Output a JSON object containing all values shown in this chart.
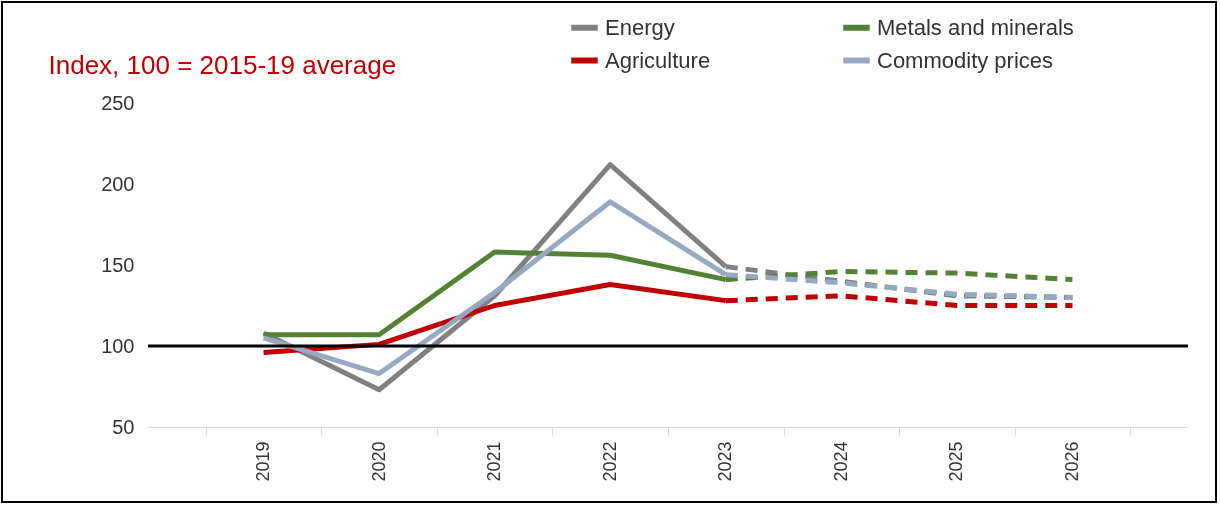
{
  "chart_data": {
    "type": "line",
    "ylabel": "Index, 100 = 2015-19 average",
    "categories": [
      "2019",
      "2020",
      "2021",
      "2022",
      "2023",
      "2024",
      "2025",
      "2026"
    ],
    "ylim": [
      50,
      250
    ],
    "yticks": [
      50,
      100,
      150,
      200,
      250
    ],
    "legend": "top",
    "series": [
      {
        "name": "Energy",
        "color": "#808080",
        "values": [
          108,
          73,
          131,
          212,
          149,
          null,
          null,
          null
        ]
      },
      {
        "name": "Metals and minerals",
        "color": "#548235",
        "values": [
          107,
          107,
          158,
          156,
          141,
          null,
          null,
          null
        ]
      },
      {
        "name": "Agriculture",
        "color": "#c00000",
        "values": [
          96,
          101,
          125,
          138,
          128,
          null,
          null,
          null
        ]
      },
      {
        "name": "Commodity prices",
        "color": "#97a9c1",
        "values": [
          105,
          83,
          133,
          189,
          144,
          null,
          null,
          null
        ]
      },
      {
        "color": "#808080",
        "line_style": "dashed",
        "values": [
          null,
          null,
          null,
          null,
          149,
          140,
          131,
          130
        ]
      },
      {
        "color": "#548235",
        "line_style": "dashed",
        "values": [
          null,
          null,
          null,
          null,
          141,
          146,
          145,
          141
        ]
      },
      {
        "color": "#c00000",
        "line_style": "dashed",
        "values": [
          null,
          null,
          null,
          null,
          128,
          131,
          125,
          125
        ]
      },
      {
        "color": "#97a9c1",
        "line_style": "dashed",
        "values": [
          null,
          null,
          null,
          null,
          144,
          139,
          132,
          130
        ]
      }
    ],
    "ref_lines": [
      {
        "axis": "y",
        "value": 100,
        "color": "#000000"
      }
    ]
  }
}
